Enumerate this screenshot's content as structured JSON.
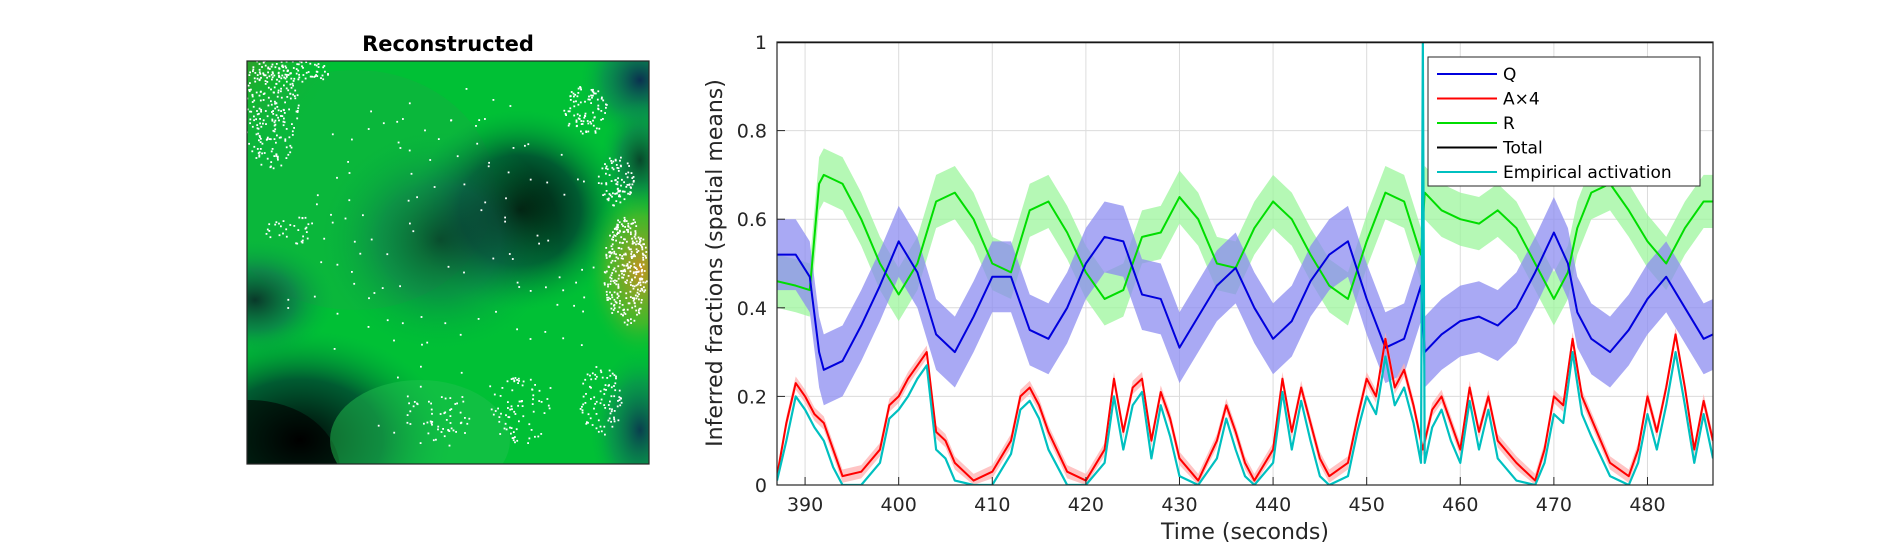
{
  "left_panel": {
    "title": "Reconstructed"
  },
  "chart_data": {
    "type": "line",
    "title": "",
    "xlabel": "Time (seconds)",
    "ylabel": "Inferred fractions (spatial means)",
    "xlim": [
      387,
      487
    ],
    "ylim": [
      0,
      1
    ],
    "xticks": [
      390,
      400,
      410,
      420,
      430,
      440,
      450,
      460,
      470,
      480
    ],
    "yticks": [
      0,
      0.2,
      0.4,
      0.6,
      0.8,
      1
    ],
    "ytick_labels": [
      "0",
      "0.2",
      "0.4",
      "0.6",
      "0.8",
      "1"
    ],
    "grid": true,
    "legend_position": "top-right",
    "colors": {
      "Q": "#0000dd",
      "A": "#ff0000",
      "R": "#00dd00",
      "Total": "#000000",
      "Empirical": "#00c0c0",
      "Q_band": "#8c8cf0",
      "R_band": "#9cf59c",
      "A_band": "#ffb0b0"
    },
    "series": [
      {
        "name": "Q",
        "x": [
          387,
          389,
          390.5,
          391.5,
          392,
          394,
          396,
          398,
          400,
          402,
          404,
          406,
          408,
          410,
          412,
          414,
          416,
          418,
          420,
          422,
          424,
          426,
          428,
          430,
          432,
          434,
          436,
          438,
          440,
          442,
          444,
          446,
          448,
          450,
          452,
          454,
          455.8,
          456.2,
          458,
          460,
          462,
          464,
          466,
          468,
          470,
          471.5,
          472.5,
          474,
          476,
          478,
          480,
          482,
          484,
          486,
          487
        ],
        "y": [
          0.52,
          0.52,
          0.47,
          0.3,
          0.26,
          0.28,
          0.36,
          0.45,
          0.55,
          0.48,
          0.34,
          0.3,
          0.38,
          0.47,
          0.47,
          0.35,
          0.33,
          0.4,
          0.5,
          0.56,
          0.55,
          0.43,
          0.42,
          0.31,
          0.38,
          0.45,
          0.49,
          0.4,
          0.33,
          0.37,
          0.46,
          0.52,
          0.55,
          0.42,
          0.31,
          0.33,
          0.45,
          0.3,
          0.34,
          0.37,
          0.38,
          0.36,
          0.4,
          0.48,
          0.57,
          0.5,
          0.39,
          0.33,
          0.3,
          0.35,
          0.42,
          0.47,
          0.4,
          0.33,
          0.34
        ]
      },
      {
        "name": "A×4",
        "x": [
          387,
          388,
          389,
          390,
          391,
          392,
          393,
          394,
          396,
          398,
          399,
          400,
          401,
          402,
          403,
          404,
          405,
          406,
          408,
          410,
          412,
          413,
          414,
          415,
          416,
          418,
          420,
          422,
          423,
          424,
          425,
          426,
          427,
          428,
          429,
          430,
          432,
          434,
          435,
          436,
          437,
          438,
          440,
          441,
          442,
          443,
          444,
          445,
          446,
          448,
          449,
          450,
          451,
          452,
          453,
          454,
          455,
          456,
          457,
          458,
          459,
          460,
          461,
          462,
          463,
          464,
          466,
          468,
          469,
          470,
          471,
          472,
          473,
          474,
          476,
          478,
          479,
          480,
          481,
          482,
          483,
          484,
          485,
          486,
          487
        ],
        "y": [
          0.02,
          0.14,
          0.23,
          0.2,
          0.16,
          0.14,
          0.08,
          0.02,
          0.03,
          0.08,
          0.18,
          0.2,
          0.24,
          0.27,
          0.3,
          0.12,
          0.1,
          0.05,
          0.01,
          0.03,
          0.1,
          0.2,
          0.22,
          0.18,
          0.12,
          0.03,
          0.01,
          0.08,
          0.24,
          0.12,
          0.22,
          0.24,
          0.1,
          0.21,
          0.15,
          0.06,
          0.01,
          0.1,
          0.18,
          0.12,
          0.05,
          0.01,
          0.08,
          0.24,
          0.12,
          0.22,
          0.14,
          0.06,
          0.02,
          0.05,
          0.15,
          0.24,
          0.2,
          0.33,
          0.22,
          0.26,
          0.18,
          0.08,
          0.17,
          0.2,
          0.14,
          0.08,
          0.22,
          0.12,
          0.2,
          0.1,
          0.05,
          0.01,
          0.08,
          0.2,
          0.18,
          0.33,
          0.2,
          0.15,
          0.05,
          0.02,
          0.08,
          0.2,
          0.12,
          0.22,
          0.34,
          0.22,
          0.08,
          0.19,
          0.1
        ]
      },
      {
        "name": "R",
        "x": [
          387,
          389,
          390.5,
          391.5,
          392,
          394,
          396,
          398,
          400,
          402,
          404,
          406,
          408,
          410,
          412,
          414,
          416,
          418,
          420,
          422,
          424,
          426,
          428,
          430,
          432,
          434,
          436,
          438,
          440,
          442,
          444,
          446,
          448,
          450,
          452,
          454,
          455.8,
          456.2,
          458,
          460,
          462,
          464,
          466,
          468,
          470,
          471.5,
          472.5,
          474,
          476,
          478,
          480,
          482,
          484,
          486,
          487
        ],
        "y": [
          0.46,
          0.45,
          0.44,
          0.68,
          0.7,
          0.68,
          0.6,
          0.5,
          0.43,
          0.5,
          0.64,
          0.66,
          0.6,
          0.5,
          0.48,
          0.62,
          0.64,
          0.57,
          0.48,
          0.42,
          0.44,
          0.56,
          0.57,
          0.65,
          0.6,
          0.5,
          0.49,
          0.58,
          0.64,
          0.6,
          0.52,
          0.45,
          0.42,
          0.55,
          0.66,
          0.64,
          0.52,
          0.66,
          0.62,
          0.6,
          0.59,
          0.62,
          0.58,
          0.5,
          0.42,
          0.48,
          0.58,
          0.66,
          0.68,
          0.62,
          0.55,
          0.5,
          0.58,
          0.64,
          0.64
        ]
      },
      {
        "name": "Total",
        "x": [
          387,
          487
        ],
        "y": [
          1,
          1
        ]
      },
      {
        "name": "Empirical activation",
        "x": [
          387,
          388,
          389,
          390,
          391,
          392,
          393,
          394,
          396,
          398,
          399,
          400,
          401,
          402,
          403,
          404,
          405,
          406,
          408,
          410,
          412,
          413,
          414,
          415,
          416,
          418,
          420,
          422,
          423,
          424,
          425,
          426,
          427,
          428,
          429,
          430,
          432,
          434,
          435,
          436,
          437,
          438,
          440,
          441,
          442,
          443,
          444,
          445,
          446,
          448,
          449,
          450,
          451,
          452,
          453,
          454,
          455,
          455.8,
          456,
          456.2,
          457,
          458,
          459,
          460,
          461,
          462,
          463,
          464,
          466,
          468,
          469,
          470,
          471,
          472,
          473,
          474,
          476,
          478,
          479,
          480,
          481,
          482,
          483,
          484,
          485,
          486,
          487
        ],
        "y": [
          0.01,
          0.1,
          0.2,
          0.17,
          0.13,
          0.1,
          0.04,
          0.0,
          0.0,
          0.05,
          0.15,
          0.17,
          0.2,
          0.24,
          0.27,
          0.08,
          0.06,
          0.01,
          0.0,
          0.0,
          0.07,
          0.17,
          0.19,
          0.15,
          0.08,
          0.0,
          0.0,
          0.05,
          0.2,
          0.08,
          0.18,
          0.21,
          0.06,
          0.18,
          0.11,
          0.02,
          0.0,
          0.06,
          0.15,
          0.08,
          0.02,
          0.0,
          0.05,
          0.21,
          0.08,
          0.19,
          0.1,
          0.02,
          0.0,
          0.02,
          0.12,
          0.2,
          0.16,
          0.29,
          0.18,
          0.22,
          0.14,
          0.05,
          1.0,
          0.05,
          0.13,
          0.17,
          0.1,
          0.05,
          0.19,
          0.08,
          0.17,
          0.06,
          0.01,
          0.0,
          0.05,
          0.16,
          0.14,
          0.3,
          0.16,
          0.11,
          0.02,
          0.0,
          0.05,
          0.16,
          0.08,
          0.18,
          0.3,
          0.18,
          0.05,
          0.16,
          0.06
        ]
      }
    ],
    "bands": {
      "Q_halfwidth": 0.08,
      "R_halfwidth": 0.06,
      "A_halfwidth": 0.015
    }
  }
}
